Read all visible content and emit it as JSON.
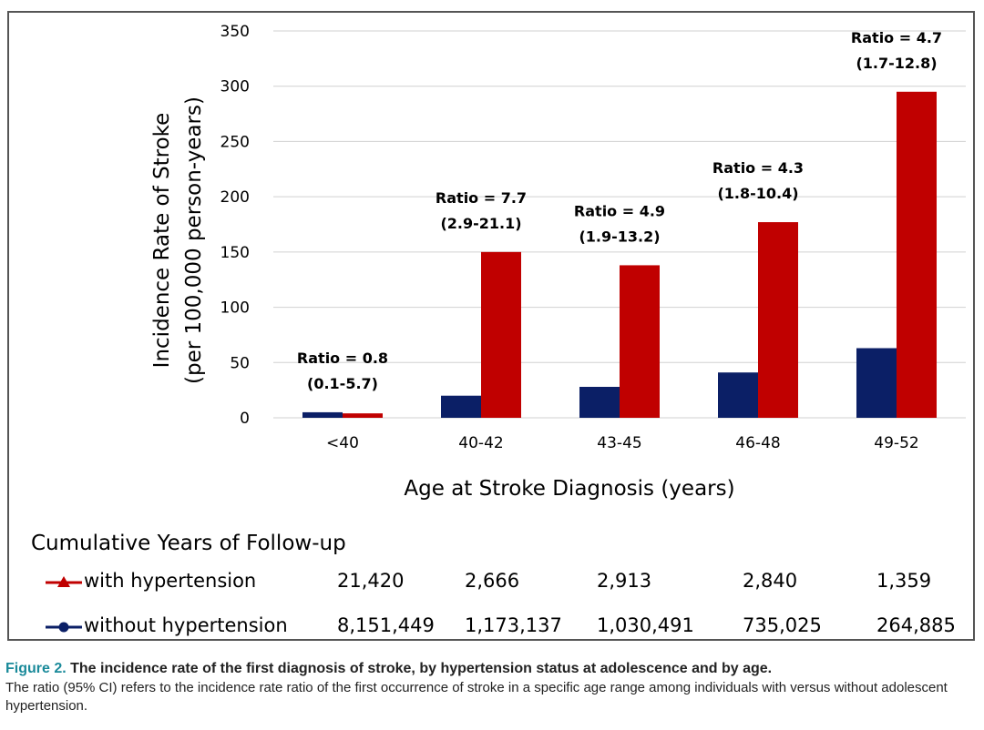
{
  "chart_data": {
    "type": "bar",
    "categories": [
      "<40",
      "40-42",
      "43-45",
      "46-48",
      "49-52"
    ],
    "series": [
      {
        "name": "without hypertension",
        "color": "#0b1f66",
        "values": [
          5,
          20,
          28,
          41,
          63
        ]
      },
      {
        "name": "with hypertension",
        "color": "#c00000",
        "values": [
          4,
          150,
          138,
          177,
          295
        ]
      }
    ],
    "annotations": [
      {
        "ratio": "Ratio = 0.8",
        "ci": "(0.1-5.7)"
      },
      {
        "ratio": "Ratio = 7.7",
        "ci": "(2.9-21.1)"
      },
      {
        "ratio": "Ratio = 4.9",
        "ci": "(1.9-13.2)"
      },
      {
        "ratio": "Ratio = 4.3",
        "ci": "(1.8-10.4)"
      },
      {
        "ratio": "Ratio = 4.7",
        "ci": "(1.7-12.8)"
      }
    ],
    "ylabel_line1": "Incidence Rate of Stroke",
    "ylabel_line2": "(per 100,000 person-years)",
    "xlabel": "Age at Stroke Diagnosis (years)",
    "ylim": [
      0,
      350
    ],
    "yticks": [
      0,
      50,
      100,
      150,
      200,
      250,
      300,
      350
    ],
    "grid": true
  },
  "followup": {
    "heading": "Cumulative Years of Follow-up",
    "rows": [
      {
        "label": "with hypertension",
        "color": "#c00000",
        "marker": "triangle",
        "values": [
          "21,420",
          "2,666",
          "2,913",
          "2,840",
          "1,359"
        ]
      },
      {
        "label": "without hypertension",
        "color": "#0b1f66",
        "marker": "circle",
        "values": [
          "8,151,449",
          "1,173,137",
          "1,030,491",
          "735,025",
          "264,885"
        ]
      }
    ]
  },
  "caption": {
    "figure_no": "Figure 2.",
    "title": " The incidence rate of the first diagnosis of stroke, by hypertension status at adolescence and by age.",
    "body": "The ratio (95% CI) refers to the incidence rate ratio of the first occurrence of stroke in a specific age range among individuals with versus without adolescent hypertension."
  }
}
